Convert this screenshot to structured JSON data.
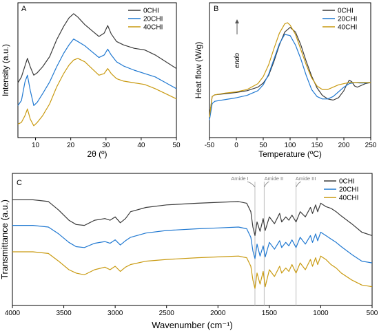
{
  "colors": {
    "0CHI": "#3a3a3a",
    "20CHI": "#1f78d1",
    "40CHI": "#c99a10",
    "axis": "#000000",
    "guide": "#bdbdbd",
    "annotation": "#777777"
  },
  "chart_data": [
    {
      "panel_label": "A",
      "type": "line",
      "xlabel": "2θ (º)",
      "ylabel": "Intensity (a.u.)",
      "xlim": [
        5,
        50
      ],
      "xticks": [
        "10",
        "20",
        "30",
        "40",
        "50"
      ],
      "legend": "top-right",
      "grid": false,
      "series": [
        {
          "name": "0CHI",
          "color": "#3a3a3a",
          "x": [
            5,
            6,
            7,
            7.7,
            8.5,
            9.5,
            10.5,
            12,
            14,
            16,
            18,
            19.5,
            20.8,
            22,
            24,
            26,
            28,
            29.5,
            30.5,
            31.5,
            33,
            35,
            38,
            41,
            44,
            47,
            50
          ],
          "y": [
            55,
            62,
            75,
            84,
            74,
            64,
            67,
            74,
            86,
            106,
            122,
            132,
            137,
            133,
            124,
            117,
            110,
            114,
            123,
            113,
            104,
            100,
            96,
            94,
            88,
            80,
            72
          ]
        },
        {
          "name": "20CHI",
          "color": "#1f78d1",
          "x": [
            5,
            6,
            7,
            7.7,
            8.5,
            9.5,
            10.5,
            12,
            14,
            16,
            18,
            19.5,
            20.8,
            22,
            24,
            26,
            28,
            29.5,
            30.5,
            31.5,
            33,
            35,
            38,
            41,
            44,
            47,
            50
          ],
          "y": [
            28,
            34,
            56,
            64,
            46,
            28,
            32,
            42,
            56,
            74,
            90,
            100,
            107,
            104,
            99,
            92,
            85,
            88,
            95,
            88,
            80,
            75,
            70,
            66,
            62,
            55,
            48
          ]
        },
        {
          "name": "40CHI",
          "color": "#c99a10",
          "x": [
            5,
            6,
            7,
            7.7,
            8.5,
            9.5,
            10.5,
            12,
            14,
            16,
            18,
            19.5,
            20.8,
            22,
            24,
            26,
            28,
            29.5,
            30.5,
            31.5,
            33,
            35,
            38,
            41,
            44,
            47,
            50
          ],
          "y": [
            6,
            8,
            16,
            24,
            12,
            4,
            8,
            16,
            30,
            50,
            66,
            76,
            82,
            84,
            80,
            72,
            64,
            66,
            72,
            66,
            60,
            57,
            55,
            53,
            48,
            42,
            36
          ]
        }
      ]
    },
    {
      "panel_label": "B",
      "type": "line",
      "xlabel": "Temperature (ºC)",
      "ylabel": "Heat flow (W/g)",
      "annotation": "endo",
      "xlim": [
        -50,
        250
      ],
      "xticks": [
        "-50",
        "0",
        "50",
        "100",
        "150",
        "200",
        "250"
      ],
      "legend": "top-right",
      "grid": false,
      "series": [
        {
          "name": "0CHI",
          "color": "#3a3a3a",
          "x": [
            -50,
            -45,
            -40,
            -20,
            0,
            20,
            40,
            50,
            60,
            70,
            80,
            90,
            100,
            110,
            120,
            130,
            140,
            150,
            160,
            170,
            180,
            190,
            200,
            205,
            210,
            215,
            220,
            225,
            230,
            240,
            250
          ],
          "y": [
            5,
            40,
            43,
            45,
            47,
            50,
            56,
            63,
            76,
            100,
            128,
            150,
            158,
            150,
            128,
            100,
            75,
            55,
            42,
            36,
            34,
            38,
            50,
            60,
            68,
            65,
            58,
            56,
            58,
            62,
            64
          ]
        },
        {
          "name": "20CHI",
          "color": "#1f78d1",
          "x": [
            -50,
            -45,
            -40,
            -20,
            0,
            20,
            40,
            50,
            60,
            70,
            80,
            90,
            100,
            110,
            120,
            130,
            140,
            150,
            160,
            170,
            180,
            190,
            200,
            210,
            220,
            230,
            240,
            250
          ],
          "y": [
            0,
            28,
            32,
            35,
            38,
            42,
            50,
            60,
            78,
            104,
            130,
            146,
            144,
            128,
            104,
            76,
            52,
            40,
            36,
            36,
            40,
            48,
            56,
            62,
            64,
            63,
            63,
            64
          ]
        },
        {
          "name": "40CHI",
          "color": "#c99a10",
          "x": [
            -50,
            -45,
            -40,
            -20,
            0,
            20,
            40,
            50,
            60,
            70,
            80,
            90,
            95,
            100,
            110,
            120,
            130,
            140,
            150,
            160,
            170,
            180,
            190,
            200,
            210,
            220,
            230,
            240,
            250
          ],
          "y": [
            5,
            40,
            43,
            46,
            48,
            52,
            62,
            74,
            94,
            122,
            148,
            164,
            166,
            162,
            146,
            120,
            94,
            72,
            58,
            52,
            52,
            56,
            60,
            62,
            64,
            64,
            64,
            64,
            64
          ]
        }
      ]
    },
    {
      "panel_label": "C",
      "type": "line",
      "xlabel": "Wavenumber (cm⁻¹)",
      "ylabel": "Transmittance (a.u.)",
      "xlim": [
        4000,
        500
      ],
      "xticks": [
        "4000",
        "3500",
        "3000",
        "2500",
        "2000",
        "1500",
        "1000",
        "500"
      ],
      "legend": "top-right",
      "grid": false,
      "annotations": [
        {
          "text": "Amide I",
          "x": 1640
        },
        {
          "text": "Amide II",
          "x": 1550
        },
        {
          "text": "Amide III",
          "x": 1240
        }
      ],
      "series": [
        {
          "name": "0CHI",
          "color": "#3a3a3a",
          "x": [
            4000,
            3800,
            3650,
            3550,
            3450,
            3380,
            3300,
            3200,
            3100,
            3050,
            3000,
            2950,
            2900,
            2850,
            2700,
            2500,
            2200,
            2000,
            1800,
            1720,
            1680,
            1660,
            1640,
            1620,
            1590,
            1560,
            1540,
            1500,
            1450,
            1400,
            1380,
            1340,
            1310,
            1280,
            1240,
            1200,
            1150,
            1100,
            1080,
            1050,
            1030,
            1000,
            950,
            900,
            850,
            800,
            700,
            600,
            500
          ],
          "y": [
            64,
            64,
            62,
            52,
            40,
            35,
            34,
            40,
            42,
            40,
            44,
            37,
            42,
            50,
            55,
            58,
            60,
            61,
            62,
            60,
            50,
            32,
            22,
            38,
            27,
            42,
            28,
            44,
            36,
            48,
            38,
            44,
            40,
            46,
            38,
            50,
            44,
            55,
            48,
            58,
            50,
            60,
            56,
            54,
            50,
            45,
            36,
            26,
            22
          ]
        },
        {
          "name": "20CHI",
          "color": "#1f78d1",
          "x": [
            4000,
            3800,
            3650,
            3550,
            3450,
            3380,
            3300,
            3200,
            3100,
            3050,
            3000,
            2950,
            2900,
            2850,
            2700,
            2500,
            2200,
            2000,
            1800,
            1720,
            1680,
            1660,
            1640,
            1620,
            1590,
            1560,
            1540,
            1500,
            1450,
            1400,
            1380,
            1340,
            1310,
            1280,
            1240,
            1200,
            1150,
            1100,
            1080,
            1050,
            1030,
            1000,
            950,
            900,
            850,
            800,
            700,
            600,
            500
          ],
          "y": [
            34,
            34,
            32,
            24,
            14,
            9,
            8,
            13,
            15,
            13,
            17,
            11,
            16,
            20,
            25,
            28,
            30,
            31,
            32,
            30,
            20,
            4,
            -5,
            12,
            -2,
            10,
            -3,
            14,
            6,
            16,
            8,
            14,
            10,
            17,
            8,
            20,
            12,
            22,
            14,
            24,
            16,
            26,
            22,
            18,
            14,
            9,
            0,
            -8,
            -10
          ]
        },
        {
          "name": "40CHI",
          "color": "#c99a10",
          "x": [
            4000,
            3800,
            3650,
            3550,
            3450,
            3380,
            3300,
            3200,
            3100,
            3050,
            3000,
            2950,
            2900,
            2850,
            2700,
            2500,
            2200,
            2000,
            1800,
            1720,
            1680,
            1660,
            1640,
            1620,
            1590,
            1560,
            1540,
            1500,
            1450,
            1400,
            1380,
            1340,
            1310,
            1280,
            1240,
            1200,
            1150,
            1100,
            1080,
            1050,
            1030,
            1000,
            950,
            900,
            850,
            800,
            700,
            600,
            500
          ],
          "y": [
            3,
            3,
            1,
            -8,
            -18,
            -22,
            -24,
            -18,
            -15,
            -18,
            -14,
            -20,
            -15,
            -12,
            -8,
            -6,
            -4,
            -3,
            -2,
            -4,
            -14,
            -30,
            -40,
            -22,
            -35,
            -20,
            -38,
            -18,
            -26,
            -14,
            -22,
            -16,
            -20,
            -12,
            -22,
            -10,
            -18,
            -6,
            -14,
            -4,
            -12,
            -2,
            -6,
            -12,
            -16,
            -22,
            -30,
            -36,
            -38
          ]
        }
      ]
    }
  ]
}
